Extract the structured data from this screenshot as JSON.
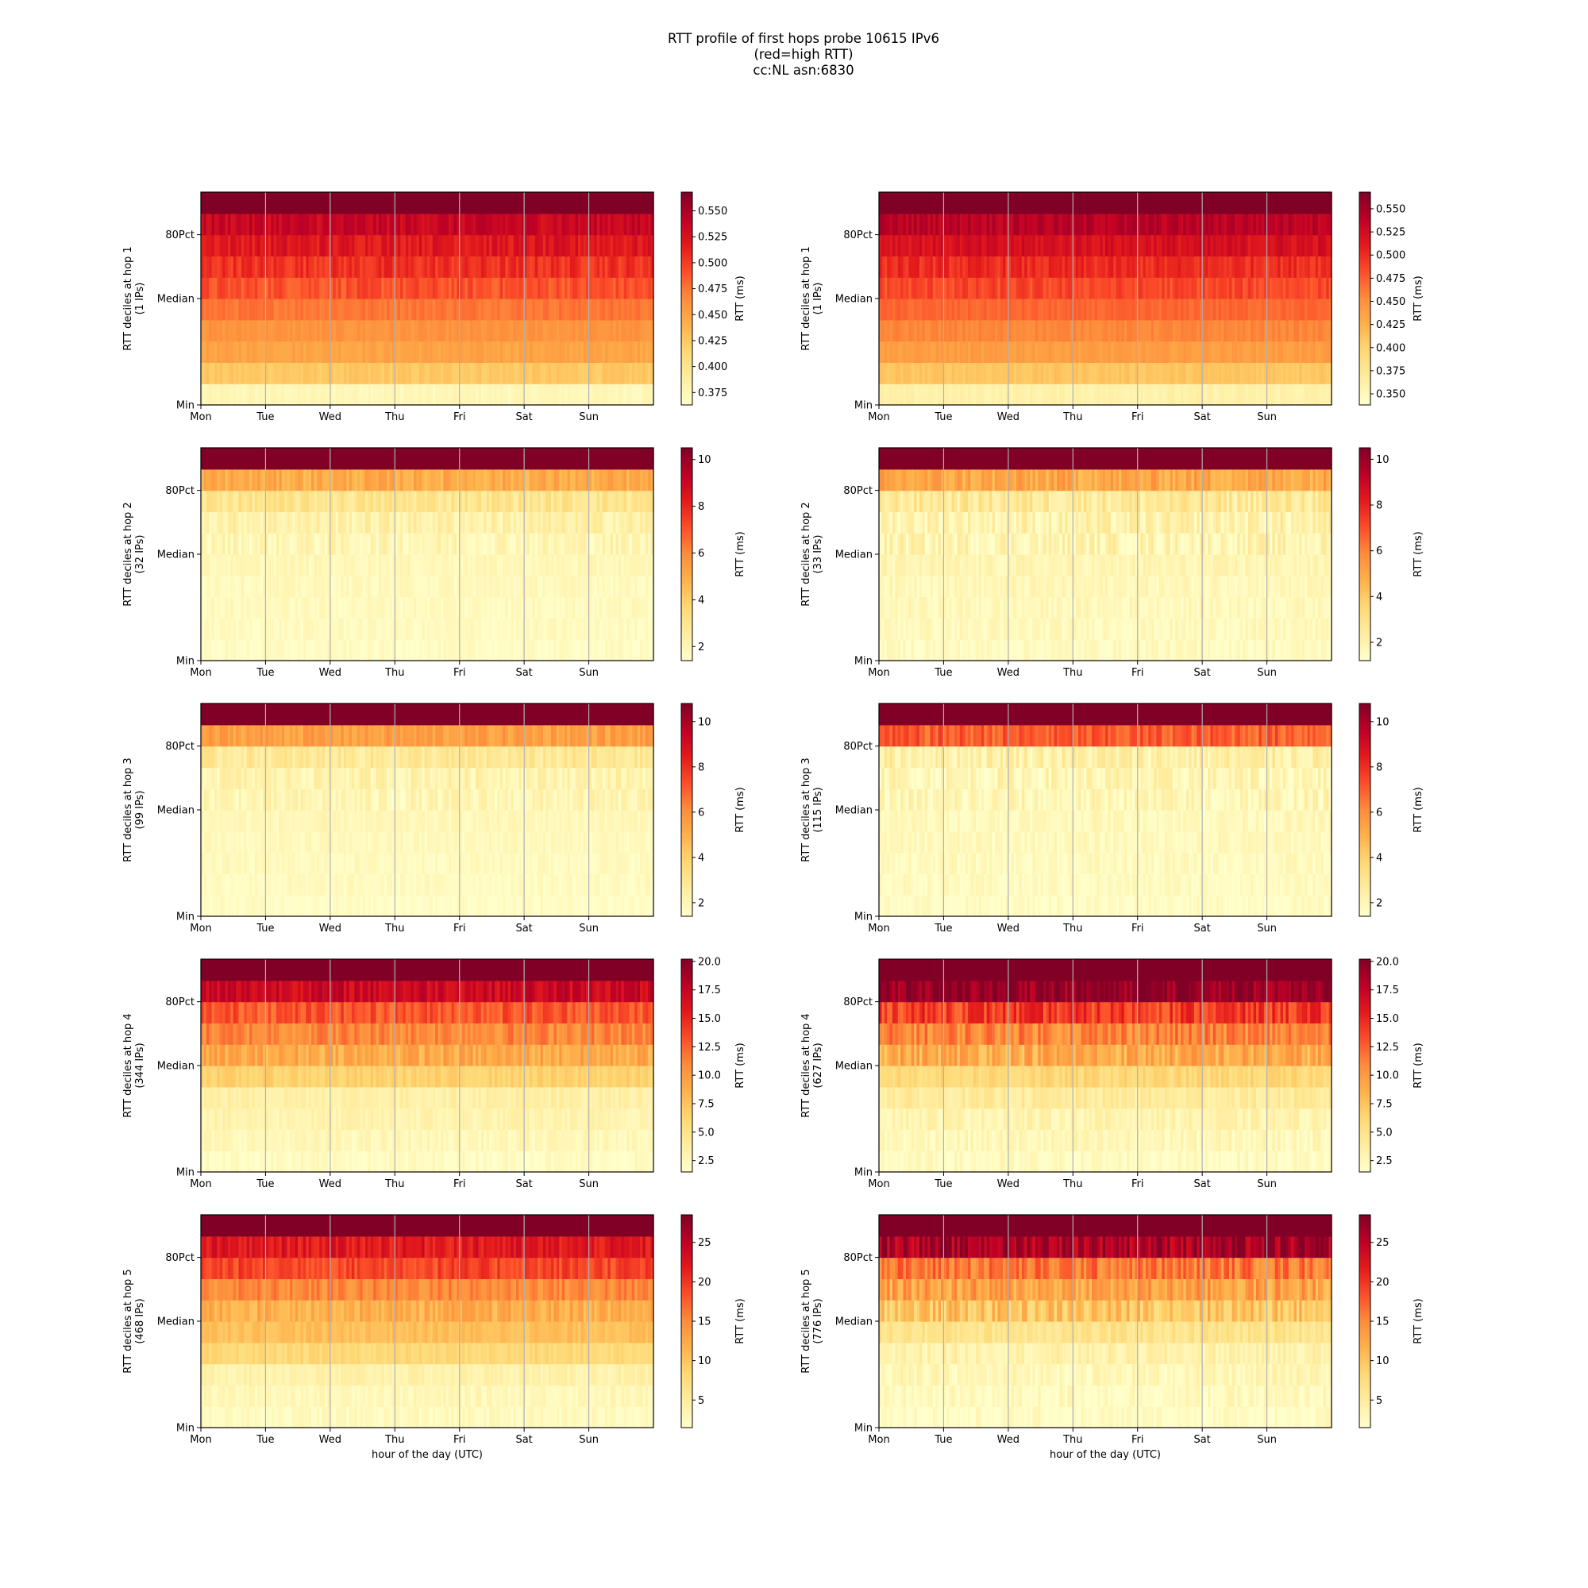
{
  "figure": {
    "title_lines": [
      "RTT profile of first hops probe 10615 IPv6",
      "(red=high RTT)",
      "cc:NL asn:6830"
    ],
    "x_ticks": [
      "Mon",
      "Tue",
      "Wed",
      "Thu",
      "Fri",
      "Sat",
      "Sun"
    ],
    "y_ticks": [
      "Min",
      "Median",
      "80Pct"
    ],
    "xlabel": "hour of the day (UTC)",
    "colorbar_label": "RTT (ms)",
    "colormap": [
      "#ffffcc",
      "#ffeda0",
      "#fed976",
      "#feb24c",
      "#fd8d3c",
      "#fc4e2a",
      "#e31a1c",
      "#bd0026",
      "#800026"
    ],
    "grid_color": "#b0b0b0"
  },
  "chart_data": [
    {
      "type": "heatmap",
      "ylabel": "RTT deciles at hop 1",
      "ylabel_sub": "(1 IPs)",
      "colorbar_ticks": [
        "0.375",
        "0.400",
        "0.425",
        "0.450",
        "0.475",
        "0.500",
        "0.525",
        "0.550"
      ],
      "colorbar_range": [
        0.363,
        0.568
      ],
      "decile_rtt_ms": [
        0.375,
        0.425,
        0.45,
        0.46,
        0.475,
        0.49,
        0.505,
        0.52,
        0.535,
        0.57
      ],
      "noise": 0.012
    },
    {
      "type": "heatmap",
      "ylabel": "RTT deciles at hop 1",
      "ylabel_sub": "(1 IPs)",
      "colorbar_ticks": [
        "0.350",
        "0.375",
        "0.400",
        "0.425",
        "0.450",
        "0.475",
        "0.500",
        "0.525",
        "0.550"
      ],
      "colorbar_range": [
        0.338,
        0.568
      ],
      "decile_rtt_ms": [
        0.36,
        0.41,
        0.44,
        0.455,
        0.47,
        0.485,
        0.5,
        0.52,
        0.54,
        0.57
      ],
      "noise": 0.012
    },
    {
      "type": "heatmap",
      "ylabel": "RTT deciles at hop 2",
      "ylabel_sub": "(32 IPs)",
      "colorbar_ticks": [
        "2",
        "4",
        "6",
        "8",
        "10"
      ],
      "colorbar_range": [
        1.4,
        10.5
      ],
      "decile_rtt_ms": [
        1.6,
        1.7,
        1.75,
        1.8,
        1.9,
        2.0,
        2.3,
        3.0,
        5.0,
        11.0
      ],
      "noise": 0.6
    },
    {
      "type": "heatmap",
      "ylabel": "RTT deciles at hop 2",
      "ylabel_sub": "(33 IPs)",
      "colorbar_ticks": [
        "2",
        "4",
        "6",
        "8",
        "10"
      ],
      "colorbar_range": [
        1.2,
        10.5
      ],
      "decile_rtt_ms": [
        1.5,
        1.6,
        1.65,
        1.7,
        1.8,
        1.9,
        2.0,
        2.6,
        5.0,
        11.0
      ],
      "noise": 0.8
    },
    {
      "type": "heatmap",
      "ylabel": "RTT deciles at hop 3",
      "ylabel_sub": "(99 IPs)",
      "colorbar_ticks": [
        "2",
        "4",
        "6",
        "8",
        "10"
      ],
      "colorbar_range": [
        1.4,
        10.8
      ],
      "decile_rtt_ms": [
        1.6,
        1.7,
        1.75,
        1.8,
        1.9,
        2.0,
        2.2,
        2.8,
        5.5,
        11.0
      ],
      "noise": 0.6
    },
    {
      "type": "heatmap",
      "ylabel": "RTT deciles at hop 3",
      "ylabel_sub": "(115 IPs)",
      "colorbar_ticks": [
        "2",
        "4",
        "6",
        "8",
        "10"
      ],
      "colorbar_range": [
        1.4,
        10.8
      ],
      "decile_rtt_ms": [
        1.6,
        1.7,
        1.75,
        1.8,
        1.85,
        1.9,
        2.0,
        2.4,
        7.0,
        11.0
      ],
      "noise": 0.8
    },
    {
      "type": "heatmap",
      "ylabel": "RTT deciles at hop 4",
      "ylabel_sub": "(344 IPs)",
      "colorbar_ticks": [
        "2.5",
        "5.0",
        "7.5",
        "10.0",
        "12.5",
        "15.0",
        "17.5",
        "20.0"
      ],
      "colorbar_range": [
        1.5,
        20.2
      ],
      "decile_rtt_ms": [
        2.0,
        2.5,
        3.0,
        3.5,
        6.5,
        9.0,
        11.0,
        13.0,
        17.0,
        21.0
      ],
      "noise": 1.5
    },
    {
      "type": "heatmap",
      "ylabel": "RTT deciles at hop 4",
      "ylabel_sub": "(627 IPs)",
      "colorbar_ticks": [
        "2.5",
        "5.0",
        "7.5",
        "10.0",
        "12.5",
        "15.0",
        "17.5",
        "20.0"
      ],
      "colorbar_range": [
        1.5,
        20.2
      ],
      "decile_rtt_ms": [
        2.0,
        2.5,
        3.0,
        4.0,
        6.0,
        9.0,
        11.0,
        14.0,
        19.5,
        21.0
      ],
      "noise": 2.0
    },
    {
      "type": "heatmap",
      "ylabel": "RTT deciles at hop 5",
      "ylabel_sub": "(468 IPs)",
      "colorbar_ticks": [
        "5",
        "10",
        "15",
        "20",
        "25"
      ],
      "colorbar_range": [
        1.5,
        28.5
      ],
      "decile_rtt_ms": [
        2.5,
        3.0,
        4.0,
        8.0,
        10.5,
        12.0,
        15.0,
        19.0,
        22.0,
        30.0
      ],
      "noise": 2.0
    },
    {
      "type": "heatmap",
      "ylabel": "RTT deciles at hop 5",
      "ylabel_sub": "(776 IPs)",
      "colorbar_ticks": [
        "5",
        "10",
        "15",
        "20",
        "25"
      ],
      "colorbar_range": [
        1.5,
        28.5
      ],
      "decile_rtt_ms": [
        2.0,
        2.5,
        3.0,
        4.0,
        6.5,
        10.0,
        13.0,
        16.0,
        26.0,
        30.0
      ],
      "noise": 3.0
    }
  ]
}
